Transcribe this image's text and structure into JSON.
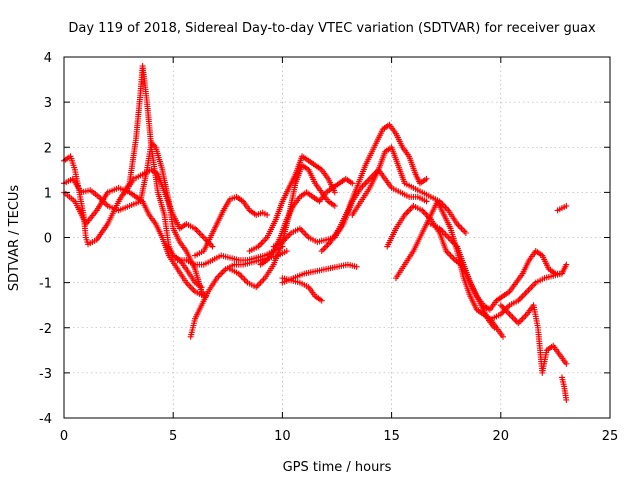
{
  "chart_data": {
    "type": "scatter",
    "title": "Day 119 of 2018, Sidereal Day-to-day VTEC variation (SDTVAR) for receiver guax",
    "xlabel": "GPS time / hours",
    "ylabel": "SDTVAR / TECUs",
    "xlim": [
      0,
      25
    ],
    "ylim": [
      -4,
      4
    ],
    "x_ticks": [
      0,
      5,
      10,
      15,
      20,
      25
    ],
    "x_tick_labels": [
      "0",
      "5",
      "10",
      "15",
      "20",
      "25"
    ],
    "y_ticks": [
      -4,
      -3,
      -2,
      -1,
      0,
      1,
      2,
      3,
      4
    ],
    "y_tick_labels": [
      "-4",
      "-3",
      "-2",
      "-1",
      "0",
      "1",
      "2",
      "3",
      "4"
    ],
    "grid": true,
    "marker": "+",
    "color": "#ff0000",
    "series": [
      {
        "name": "track-1",
        "points": [
          [
            0.0,
            1.7
          ],
          [
            0.3,
            1.8
          ],
          [
            0.5,
            1.5
          ],
          [
            0.7,
            1.0
          ],
          [
            0.9,
            0.5
          ],
          [
            1.0,
            0.0
          ],
          [
            1.1,
            -0.15
          ],
          [
            1.5,
            -0.05
          ],
          [
            2.0,
            0.3
          ],
          [
            2.5,
            0.8
          ],
          [
            3.0,
            1.2
          ],
          [
            3.3,
            2.2
          ],
          [
            3.5,
            3.2
          ],
          [
            3.6,
            3.8
          ],
          [
            3.8,
            3.0
          ],
          [
            4.0,
            2.0
          ],
          [
            4.3,
            1.0
          ],
          [
            4.6,
            0.5
          ],
          [
            4.8,
            -0.2
          ],
          [
            5.0,
            -0.4
          ],
          [
            5.3,
            -0.5
          ],
          [
            5.6,
            -0.7
          ],
          [
            6.0,
            -1.0
          ],
          [
            6.3,
            -1.1
          ]
        ]
      },
      {
        "name": "track-2",
        "points": [
          [
            0.0,
            1.2
          ],
          [
            0.4,
            1.3
          ],
          [
            0.8,
            1.0
          ],
          [
            1.2,
            1.05
          ],
          [
            1.6,
            0.9
          ],
          [
            2.0,
            0.7
          ],
          [
            2.5,
            0.6
          ],
          [
            3.0,
            0.7
          ],
          [
            3.5,
            0.8
          ],
          [
            3.8,
            1.5
          ],
          [
            4.0,
            2.1
          ],
          [
            4.2,
            2.0
          ],
          [
            4.5,
            1.5
          ],
          [
            4.8,
            0.8
          ],
          [
            5.0,
            0.2
          ],
          [
            5.3,
            -0.1
          ],
          [
            5.6,
            -0.3
          ],
          [
            6.0,
            -0.7
          ],
          [
            6.3,
            -1.2
          ],
          [
            6.5,
            -1.3
          ]
        ]
      },
      {
        "name": "track-3",
        "points": [
          [
            0.0,
            1.0
          ],
          [
            0.5,
            0.8
          ],
          [
            1.0,
            0.3
          ],
          [
            1.5,
            0.6
          ],
          [
            2.0,
            1.0
          ],
          [
            2.5,
            1.1
          ],
          [
            3.0,
            1.0
          ],
          [
            3.3,
            0.9
          ],
          [
            3.6,
            0.8
          ],
          [
            3.9,
            0.5
          ],
          [
            4.2,
            0.3
          ],
          [
            4.5,
            0.0
          ],
          [
            4.8,
            -0.4
          ],
          [
            5.2,
            -0.7
          ],
          [
            5.6,
            -1.0
          ],
          [
            6.0,
            -1.2
          ],
          [
            6.4,
            -1.3
          ]
        ]
      },
      {
        "name": "track-4",
        "points": [
          [
            2.8,
            1.0
          ],
          [
            3.2,
            1.3
          ],
          [
            3.6,
            1.4
          ],
          [
            4.0,
            1.5
          ],
          [
            4.3,
            1.4
          ],
          [
            4.6,
            1.0
          ],
          [
            5.0,
            0.5
          ],
          [
            5.3,
            0.2
          ],
          [
            5.6,
            0.3
          ],
          [
            6.0,
            0.2
          ],
          [
            6.4,
            0.0
          ],
          [
            6.8,
            -0.2
          ]
        ]
      },
      {
        "name": "track-5",
        "points": [
          [
            5.2,
            -0.5
          ],
          [
            5.6,
            -0.5
          ],
          [
            6.0,
            -0.6
          ],
          [
            6.4,
            -0.6
          ],
          [
            6.8,
            -0.5
          ],
          [
            7.2,
            -0.4
          ],
          [
            7.6,
            -0.45
          ],
          [
            8.0,
            -0.5
          ],
          [
            8.4,
            -0.5
          ],
          [
            8.8,
            -0.45
          ],
          [
            9.2,
            -0.4
          ],
          [
            9.6,
            -0.3
          ],
          [
            10.0,
            -0.2
          ]
        ]
      },
      {
        "name": "track-6",
        "points": [
          [
            5.8,
            -2.2
          ],
          [
            6.0,
            -1.8
          ],
          [
            6.3,
            -1.5
          ],
          [
            6.6,
            -1.2
          ],
          [
            7.0,
            -0.9
          ],
          [
            7.4,
            -0.7
          ],
          [
            7.8,
            -0.6
          ],
          [
            8.2,
            -0.6
          ],
          [
            8.6,
            -0.55
          ],
          [
            9.0,
            -0.5
          ],
          [
            9.4,
            -0.45
          ],
          [
            9.8,
            -0.4
          ],
          [
            10.2,
            -0.3
          ]
        ]
      },
      {
        "name": "track-7",
        "points": [
          [
            6.0,
            -0.4
          ],
          [
            6.4,
            -0.3
          ],
          [
            6.7,
            0.0
          ],
          [
            7.0,
            0.3
          ],
          [
            7.3,
            0.6
          ],
          [
            7.6,
            0.85
          ],
          [
            7.9,
            0.9
          ],
          [
            8.2,
            0.8
          ],
          [
            8.5,
            0.6
          ],
          [
            8.8,
            0.5
          ],
          [
            9.1,
            0.55
          ],
          [
            9.3,
            0.5
          ]
        ]
      },
      {
        "name": "track-8",
        "points": [
          [
            7.6,
            -0.7
          ],
          [
            8.0,
            -0.8
          ],
          [
            8.4,
            -1.0
          ],
          [
            8.8,
            -1.1
          ],
          [
            9.2,
            -0.9
          ],
          [
            9.6,
            -0.6
          ],
          [
            10.0,
            -0.1
          ],
          [
            10.3,
            0.5
          ],
          [
            10.6,
            1.2
          ],
          [
            10.9,
            1.6
          ],
          [
            11.2,
            1.5
          ],
          [
            11.5,
            1.2
          ],
          [
            11.8,
            1.0
          ],
          [
            12.1,
            0.8
          ],
          [
            12.4,
            0.7
          ]
        ]
      },
      {
        "name": "track-9",
        "points": [
          [
            8.5,
            -0.3
          ],
          [
            8.9,
            -0.2
          ],
          [
            9.3,
            0.0
          ],
          [
            9.7,
            0.4
          ],
          [
            10.0,
            0.8
          ],
          [
            10.3,
            1.1
          ],
          [
            10.6,
            1.4
          ],
          [
            10.9,
            1.8
          ],
          [
            11.2,
            1.7
          ],
          [
            11.5,
            1.6
          ],
          [
            11.8,
            1.5
          ],
          [
            12.1,
            1.3
          ],
          [
            12.4,
            1.0
          ]
        ]
      },
      {
        "name": "track-10",
        "points": [
          [
            9.0,
            -0.6
          ],
          [
            9.3,
            -0.5
          ],
          [
            9.6,
            -0.3
          ],
          [
            9.9,
            0.0
          ],
          [
            10.2,
            0.4
          ],
          [
            10.5,
            0.7
          ],
          [
            10.8,
            0.9
          ],
          [
            11.1,
            1.0
          ],
          [
            11.4,
            0.9
          ],
          [
            11.7,
            0.8
          ],
          [
            12.0,
            1.0
          ],
          [
            12.3,
            1.1
          ],
          [
            12.6,
            1.2
          ],
          [
            12.9,
            1.3
          ],
          [
            13.2,
            1.2
          ]
        ]
      },
      {
        "name": "track-11",
        "points": [
          [
            9.6,
            -0.2
          ],
          [
            10.0,
            -0.1
          ],
          [
            10.4,
            0.1
          ],
          [
            10.8,
            0.2
          ],
          [
            11.2,
            0.0
          ],
          [
            11.6,
            -0.1
          ],
          [
            12.0,
            -0.05
          ],
          [
            12.4,
            0.0
          ],
          [
            12.8,
            0.3
          ],
          [
            13.2,
            0.8
          ],
          [
            13.6,
            1.1
          ],
          [
            14.0,
            1.3
          ],
          [
            14.4,
            1.5
          ],
          [
            14.7,
            1.3
          ],
          [
            15.0,
            1.1
          ],
          [
            15.4,
            1.0
          ],
          [
            15.8,
            0.9
          ],
          [
            16.2,
            0.9
          ],
          [
            16.6,
            0.8
          ]
        ]
      },
      {
        "name": "track-12",
        "points": [
          [
            10.0,
            -0.9
          ],
          [
            10.4,
            -0.95
          ],
          [
            10.8,
            -1.0
          ],
          [
            11.2,
            -1.1
          ],
          [
            11.5,
            -1.3
          ],
          [
            11.8,
            -1.4
          ]
        ]
      },
      {
        "name": "track-13",
        "points": [
          [
            10.0,
            -1.0
          ],
          [
            10.5,
            -0.9
          ],
          [
            11.0,
            -0.8
          ],
          [
            11.5,
            -0.75
          ],
          [
            12.0,
            -0.7
          ],
          [
            12.5,
            -0.65
          ],
          [
            13.0,
            -0.6
          ],
          [
            13.4,
            -0.65
          ]
        ]
      },
      {
        "name": "track-14",
        "points": [
          [
            11.8,
            -0.3
          ],
          [
            12.2,
            -0.1
          ],
          [
            12.6,
            0.2
          ],
          [
            13.0,
            0.6
          ],
          [
            13.4,
            1.1
          ],
          [
            13.8,
            1.6
          ],
          [
            14.2,
            2.0
          ],
          [
            14.6,
            2.4
          ],
          [
            14.9,
            2.5
          ],
          [
            15.2,
            2.3
          ],
          [
            15.5,
            2.0
          ],
          [
            15.8,
            1.8
          ],
          [
            16.1,
            1.4
          ],
          [
            16.3,
            1.2
          ],
          [
            16.6,
            1.3
          ]
        ]
      },
      {
        "name": "track-15",
        "points": [
          [
            13.2,
            0.5
          ],
          [
            13.6,
            0.8
          ],
          [
            14.0,
            1.1
          ],
          [
            14.4,
            1.5
          ],
          [
            14.7,
            1.9
          ],
          [
            15.0,
            2.0
          ],
          [
            15.3,
            1.6
          ],
          [
            15.6,
            1.2
          ],
          [
            16.0,
            1.1
          ],
          [
            16.4,
            1.0
          ],
          [
            16.8,
            0.9
          ],
          [
            17.2,
            0.8
          ],
          [
            17.6,
            0.6
          ],
          [
            18.0,
            0.3
          ],
          [
            18.4,
            0.1
          ]
        ]
      },
      {
        "name": "track-16",
        "points": [
          [
            14.8,
            -0.2
          ],
          [
            15.2,
            0.2
          ],
          [
            15.6,
            0.5
          ],
          [
            16.0,
            0.7
          ],
          [
            16.4,
            0.6
          ],
          [
            16.8,
            0.4
          ],
          [
            17.2,
            0.1
          ],
          [
            17.5,
            -0.3
          ],
          [
            17.9,
            -0.5
          ],
          [
            18.2,
            -0.6
          ],
          [
            18.5,
            -0.9
          ],
          [
            18.8,
            -1.2
          ],
          [
            19.1,
            -1.5
          ],
          [
            19.4,
            -1.8
          ],
          [
            19.7,
            -2.0
          ]
        ]
      },
      {
        "name": "track-17",
        "points": [
          [
            15.2,
            -0.9
          ],
          [
            15.6,
            -0.6
          ],
          [
            16.0,
            -0.3
          ],
          [
            16.4,
            0.1
          ],
          [
            16.8,
            0.5
          ],
          [
            17.1,
            0.8
          ],
          [
            17.4,
            0.5
          ],
          [
            17.7,
            0.2
          ],
          [
            18.0,
            -0.3
          ],
          [
            18.3,
            -0.9
          ],
          [
            18.6,
            -1.3
          ],
          [
            18.9,
            -1.6
          ],
          [
            19.2,
            -1.7
          ],
          [
            19.5,
            -1.8
          ],
          [
            19.8,
            -2.0
          ],
          [
            20.1,
            -2.2
          ]
        ]
      },
      {
        "name": "track-18",
        "points": [
          [
            16.8,
            0.3
          ],
          [
            17.2,
            0.2
          ],
          [
            17.6,
            0.0
          ],
          [
            18.0,
            -0.2
          ],
          [
            18.3,
            -0.6
          ],
          [
            18.6,
            -1.0
          ],
          [
            18.9,
            -1.3
          ],
          [
            19.2,
            -1.5
          ],
          [
            19.5,
            -1.6
          ],
          [
            19.8,
            -1.4
          ],
          [
            20.1,
            -1.3
          ],
          [
            20.4,
            -1.2
          ],
          [
            20.7,
            -1.0
          ],
          [
            21.0,
            -0.8
          ],
          [
            21.3,
            -0.5
          ],
          [
            21.6,
            -0.3
          ],
          [
            21.9,
            -0.4
          ],
          [
            22.2,
            -0.7
          ],
          [
            22.5,
            -0.8
          ],
          [
            22.8,
            -0.8
          ],
          [
            23.0,
            -0.6
          ]
        ]
      },
      {
        "name": "track-19",
        "points": [
          [
            19.6,
            -1.8
          ],
          [
            20.0,
            -1.7
          ],
          [
            20.4,
            -1.5
          ],
          [
            20.8,
            -1.4
          ],
          [
            21.2,
            -1.2
          ],
          [
            21.6,
            -1.0
          ],
          [
            22.0,
            -0.9
          ],
          [
            22.4,
            -0.85
          ],
          [
            22.8,
            -0.8
          ]
        ]
      },
      {
        "name": "track-20",
        "points": [
          [
            20.0,
            -1.5
          ],
          [
            20.4,
            -1.7
          ],
          [
            20.8,
            -1.9
          ],
          [
            21.2,
            -1.7
          ],
          [
            21.5,
            -1.5
          ],
          [
            21.7,
            -2.0
          ],
          [
            21.8,
            -2.5
          ],
          [
            21.9,
            -3.0
          ],
          [
            22.1,
            -2.5
          ],
          [
            22.4,
            -2.4
          ],
          [
            22.7,
            -2.6
          ],
          [
            23.0,
            -2.8
          ]
        ]
      },
      {
        "name": "track-21",
        "points": [
          [
            22.8,
            -3.1
          ],
          [
            22.9,
            -3.3
          ],
          [
            23.0,
            -3.6
          ]
        ]
      },
      {
        "name": "track-22",
        "points": [
          [
            22.6,
            0.6
          ],
          [
            22.8,
            0.65
          ],
          [
            23.0,
            0.7
          ]
        ]
      }
    ]
  }
}
